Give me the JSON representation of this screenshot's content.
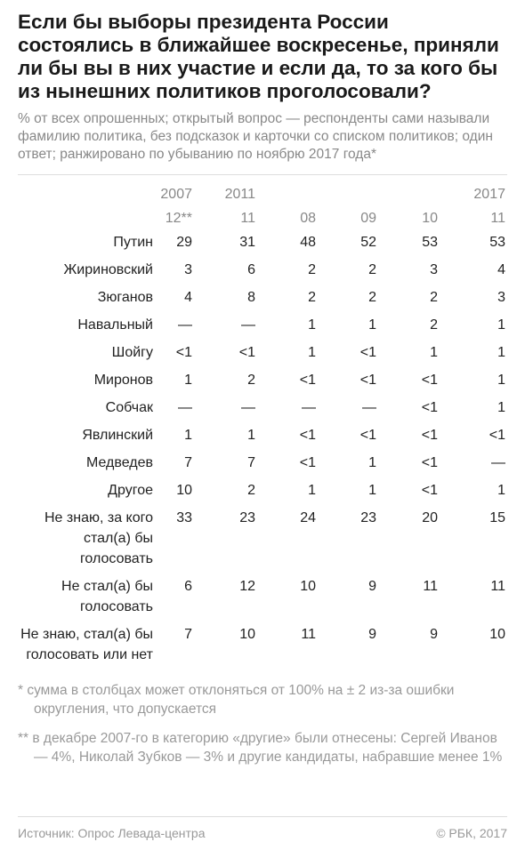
{
  "header": {
    "title": "Если бы выборы президента России состоялись в ближайшее воскресенье, приняли ли бы вы в них участие и если да, то за кого бы из нынешних политиков проголосовали?",
    "subtitle": "% от всех опрошенных; открытый вопрос — респонденты сами называли фамилию политика, без подсказок и карточки со списком политиков; один ответ; ранжировано по убыванию по ноябрю 2017 года*"
  },
  "table": {
    "years": [
      "2007",
      "2011",
      null,
      null,
      null,
      "2017"
    ],
    "months": [
      "12**",
      "11",
      "08",
      "09",
      "10",
      "11"
    ],
    "rows": [
      {
        "label": "Путин",
        "values": [
          "29",
          "31",
          "48",
          "52",
          "53",
          "53"
        ]
      },
      {
        "label": "Жириновский",
        "values": [
          "3",
          "6",
          "2",
          "2",
          "3",
          "4"
        ]
      },
      {
        "label": "Зюганов",
        "values": [
          "4",
          "8",
          "2",
          "2",
          "2",
          "3"
        ]
      },
      {
        "label": "Навальный",
        "values": [
          "—",
          "—",
          "1",
          "1",
          "2",
          "1"
        ]
      },
      {
        "label": "Шойгу",
        "values": [
          "<1",
          "<1",
          "1",
          "<1",
          "1",
          "1"
        ]
      },
      {
        "label": "Миронов",
        "values": [
          "1",
          "2",
          "<1",
          "<1",
          "<1",
          "1"
        ]
      },
      {
        "label": "Собчак",
        "values": [
          "—",
          "—",
          "—",
          "—",
          "<1",
          "1"
        ]
      },
      {
        "label": "Явлинский",
        "values": [
          "1",
          "1",
          "<1",
          "<1",
          "<1",
          "<1"
        ]
      },
      {
        "label": "Медведев",
        "values": [
          "7",
          "7",
          "<1",
          "1",
          "<1",
          "—"
        ]
      },
      {
        "label": "Другое",
        "values": [
          "10",
          "2",
          "1",
          "1",
          "<1",
          "1"
        ]
      },
      {
        "label": "Не знаю, за кого стал(а) бы голосовать",
        "values": [
          "33",
          "23",
          "24",
          "23",
          "20",
          "15"
        ]
      },
      {
        "label": "Не стал(а) бы голосовать",
        "values": [
          "6",
          "12",
          "10",
          "9",
          "11",
          "11"
        ]
      },
      {
        "label": "Не знаю, стал(а) бы голосовать или нет",
        "values": [
          "7",
          "10",
          "11",
          "9",
          "9",
          "10"
        ]
      }
    ]
  },
  "footnotes": [
    "* сумма в столбцах может отклоняться от 100% на ± 2 из-за ошибки округления, что допускается",
    "** в декабре 2007-го в категорию «другие» были отнесены: Сергей Иванов — 4%, Николай Зубков — 3% и другие кандидаты, набравшие менее 1%"
  ],
  "footer": {
    "source": "Источник: Опрос Левада-центра",
    "copyright": "© РБК, 2017"
  }
}
